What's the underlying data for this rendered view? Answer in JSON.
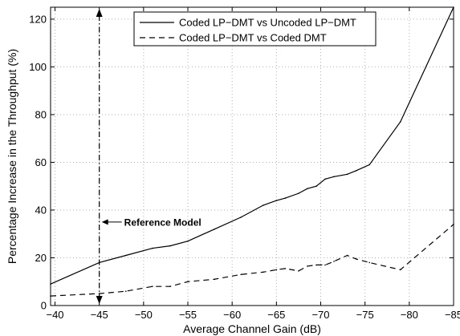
{
  "chart_data": {
    "type": "line",
    "title": "",
    "xlabel": "Average Channel Gain (dB)",
    "ylabel": "Percentage Increase in the Throughput (%)",
    "xlim": [
      -39.5,
      -85
    ],
    "ylim": [
      0,
      125
    ],
    "x_reversed": true,
    "grid": true,
    "grid_style": "dotted",
    "legend_position": "top-center",
    "xticks": [
      -40,
      -45,
      -50,
      -55,
      -60,
      -65,
      -70,
      -75,
      -80,
      -85
    ],
    "xtick_labels": [
      "−40",
      "−45",
      "−50",
      "−55",
      "−60",
      "−65",
      "−70",
      "−75",
      "−80",
      "−85"
    ],
    "yticks": [
      0,
      20,
      40,
      60,
      80,
      100,
      120
    ],
    "ytick_labels": [
      "0",
      "20",
      "40",
      "60",
      "80",
      "100",
      "120"
    ],
    "series": [
      {
        "name": "Coded LP−DMT vs Uncoded LP−DMT",
        "style": "solid",
        "color": "#000000",
        "x": [
          -39.5,
          -45,
          -48,
          -51,
          -53,
          -55,
          -58,
          -61,
          -63.5,
          -65,
          -66,
          -67.5,
          -68.5,
          -69.5,
          -70.5,
          -71.5,
          -73,
          -74,
          -75.5,
          -79,
          -85
        ],
        "y": [
          9,
          18,
          21,
          24,
          25,
          27,
          32,
          37,
          42,
          44,
          45,
          47,
          49,
          50,
          53,
          54,
          55,
          56.5,
          59,
          77,
          125
        ]
      },
      {
        "name": "Coded LP−DMT vs Coded DMT",
        "style": "dashed",
        "color": "#000000",
        "x": [
          -39.5,
          -45,
          -48,
          -51,
          -53,
          -55,
          -58,
          -61,
          -63.5,
          -65,
          -66,
          -67.5,
          -68.5,
          -69.5,
          -70.5,
          -71.5,
          -73,
          -74,
          -75.5,
          -79,
          -85
        ],
        "y": [
          4,
          5,
          6,
          8,
          8,
          10,
          11,
          13,
          14,
          15,
          15.5,
          14.5,
          16.5,
          17,
          17,
          18.5,
          21,
          19.5,
          18,
          15,
          34
        ]
      }
    ],
    "annotations": [
      {
        "text": "Reference Model",
        "x_at": -45,
        "y_at": 35,
        "arrow": "vertical double-headed dash-dot line at x = -45 spanning y = 0 to 125"
      }
    ]
  }
}
